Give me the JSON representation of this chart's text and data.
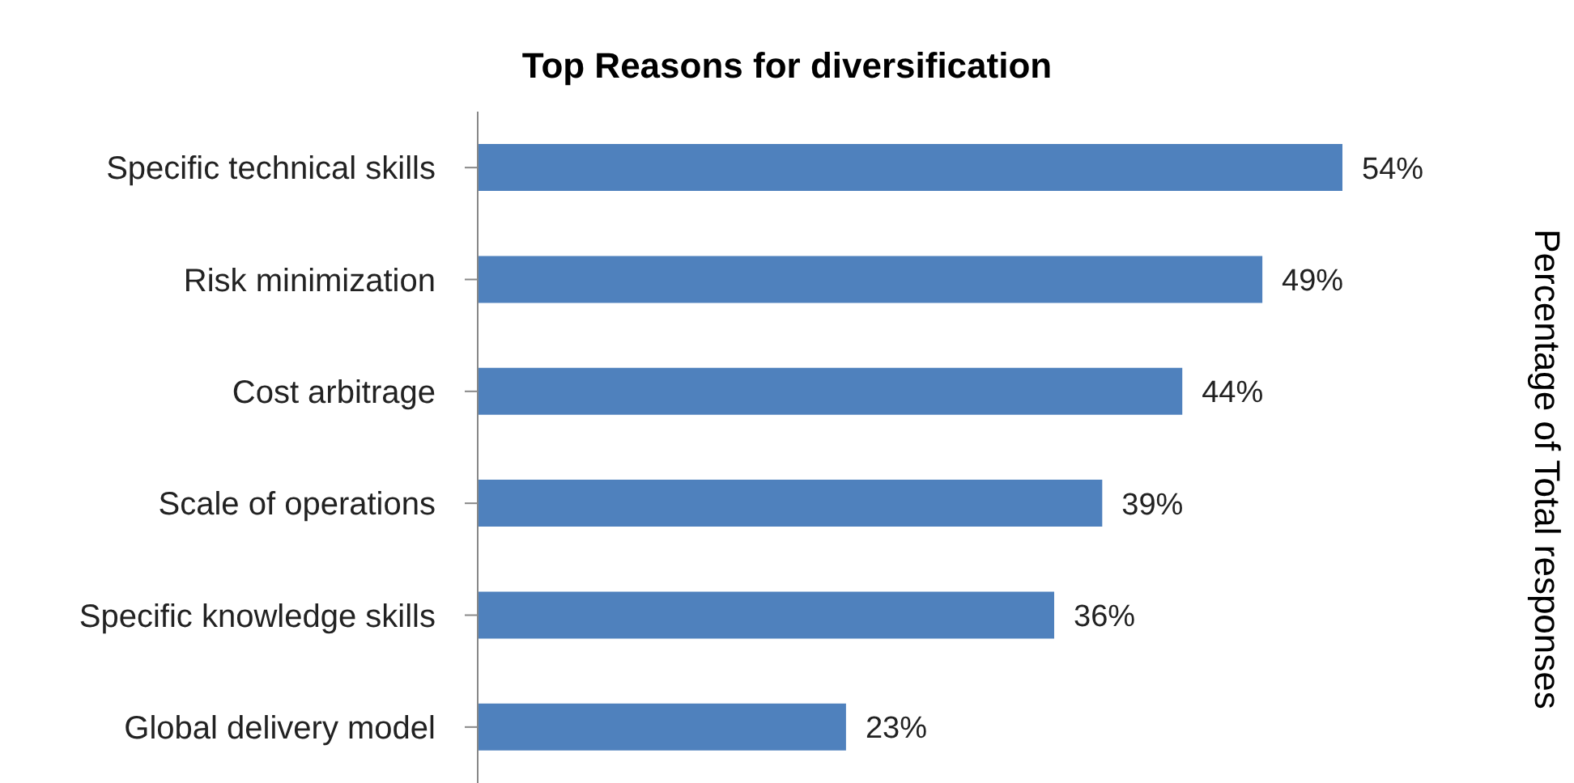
{
  "chart_data": {
    "type": "bar",
    "orientation": "horizontal",
    "title": "Top Reasons for diversification",
    "annotations": [
      "Percentage of Total responses"
    ],
    "categories": [
      "Specific technical skills",
      "Risk minimization",
      "Cost arbitrage",
      "Scale of operations",
      "Specific knowledge skills",
      "Global delivery model"
    ],
    "values": [
      54,
      49,
      44,
      39,
      36,
      23
    ],
    "value_labels": [
      "54%",
      "49%",
      "44%",
      "39%",
      "36%",
      "23%"
    ],
    "color": "#4f81bd"
  }
}
